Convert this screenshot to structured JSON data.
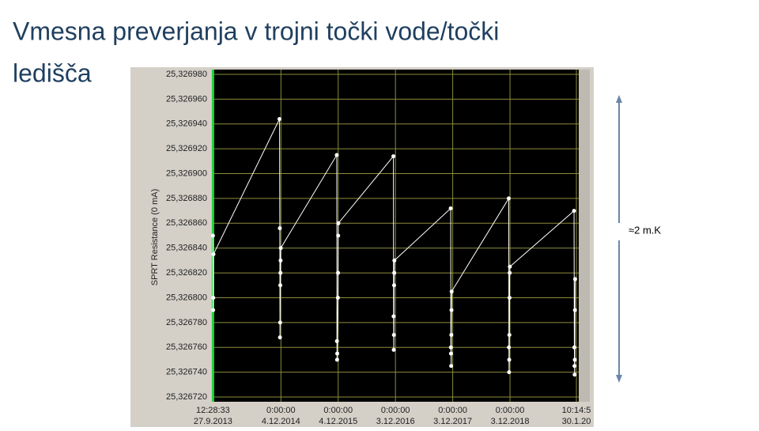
{
  "slide": {
    "title_lines": [
      "Vmesna preverjanja v trojni točki vode/točki",
      "ledišča"
    ],
    "annotation": "≈2 m.K"
  },
  "chart_data": {
    "type": "line",
    "ylabel": "SPRT Resistance (0 mA)",
    "xlim": [
      "2013-09-20",
      "2020-02-14"
    ],
    "xticks": [
      {
        "value": "2013-09-27",
        "label": "27.9.2013"
      },
      {
        "value": "2014-12-04",
        "label": "4.12.2014"
      },
      {
        "value": "2015-12-04",
        "label": "4.12.2015"
      },
      {
        "value": "2016-12-03",
        "label": "3.12.2016"
      },
      {
        "value": "2017-12-03",
        "label": "3.12.2017"
      },
      {
        "value": "2018-12-03",
        "label": "3.12.2018"
      },
      {
        "value": "2020-01-30",
        "label": "30.1.20"
      }
    ],
    "xtick_times": [
      "12:28:33",
      "0:00:00",
      "0:00:00",
      "0:00:00",
      "0:00:00",
      "0:00:00",
      "10:14:5"
    ],
    "ylim": [
      25.32672,
      25.32698
    ],
    "yticks": [
      {
        "value": 25.32672,
        "label": "25,326720"
      },
      {
        "value": 25.32674,
        "label": "25,326740"
      },
      {
        "value": 25.32676,
        "label": "25,326760"
      },
      {
        "value": 25.32678,
        "label": "25,326780"
      },
      {
        "value": 25.3268,
        "label": "25,326800"
      },
      {
        "value": 25.32682,
        "label": "25,326820"
      },
      {
        "value": 25.32684,
        "label": "25,326840"
      },
      {
        "value": 25.32686,
        "label": "25,326860"
      },
      {
        "value": 25.32688,
        "label": "25,326880"
      },
      {
        "value": 25.3269,
        "label": "25,326900"
      },
      {
        "value": 25.32692,
        "label": "25,326920"
      },
      {
        "value": 25.32694,
        "label": "25,326940"
      },
      {
        "value": 25.32696,
        "label": "25,326960"
      },
      {
        "value": 25.32698,
        "label": "25,326980"
      }
    ],
    "grid": true,
    "cursor_x": "2013-09-27",
    "series": [
      {
        "color": "#ffffff",
        "x": [
          "2013-09-27",
          "2013-09-28",
          "2013-09-29",
          "2013-09-30",
          "2014-11-25",
          "2014-11-27",
          "2014-11-28",
          "2014-11-29",
          "2014-11-30",
          "2014-12-01",
          "2014-12-02",
          "2014-12-03",
          "2015-11-25",
          "2015-11-26",
          "2015-11-27",
          "2015-11-28",
          "2015-12-02",
          "2015-12-03",
          "2015-12-04",
          "2015-12-05",
          "2016-11-20",
          "2016-11-21",
          "2016-11-22",
          "2016-11-23",
          "2016-11-24",
          "2016-11-25",
          "2016-11-26",
          "2017-11-20",
          "2017-11-21",
          "2017-11-22",
          "2017-11-23",
          "2017-11-24",
          "2017-11-25",
          "2017-11-26",
          "2018-11-25",
          "2018-11-26",
          "2018-11-27",
          "2018-11-28",
          "2018-11-29",
          "2018-11-30",
          "2018-12-01",
          "2018-12-02",
          "2020-01-15",
          "2020-01-17",
          "2020-01-18",
          "2020-01-19",
          "2020-01-20",
          "2020-01-21",
          "2020-01-22"
        ],
        "values": [
          25.32685,
          25.32679,
          25.3268,
          25.326835,
          25.326944,
          25.326856,
          25.326768,
          25.32678,
          25.32681,
          25.32682,
          25.32683,
          25.32684,
          25.326915,
          25.326765,
          25.32675,
          25.326755,
          25.3268,
          25.32682,
          25.32685,
          25.32686,
          25.326914,
          25.326785,
          25.326758,
          25.32677,
          25.32681,
          25.32682,
          25.32683,
          25.326872,
          25.32676,
          25.326755,
          25.326745,
          25.32677,
          25.32679,
          25.326805,
          25.32688,
          25.32676,
          25.32674,
          25.32675,
          25.32677,
          25.3268,
          25.32682,
          25.326825,
          25.32687,
          25.32676,
          25.326745,
          25.326738,
          25.32675,
          25.32679,
          25.326815
        ]
      }
    ]
  }
}
